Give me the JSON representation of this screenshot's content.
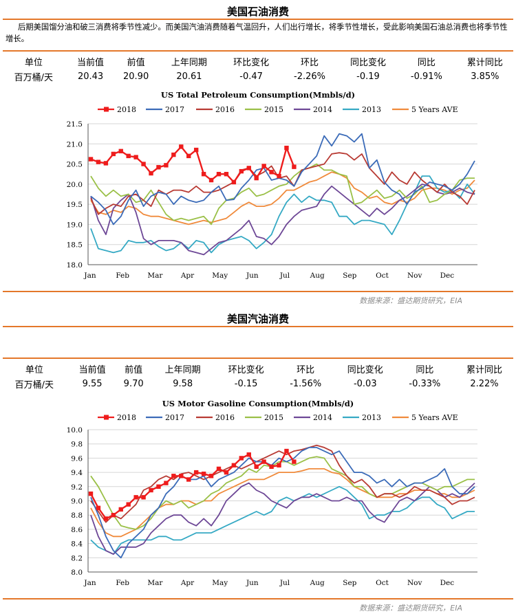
{
  "petroleum": {
    "section_title": "美国石油消费",
    "intro": "后期美国馏分油和破三消费将季节性减少。而美国汽油消费随着气温回升，人们出行增长，将季节性增长，受此影响美国石油总消费也将季节性增长。",
    "stats_headers": [
      "单位",
      "当前值",
      "前值",
      "上年同期",
      "环比变化",
      "环比",
      "同比变化",
      "同比",
      "累计同比"
    ],
    "stats_values": [
      "百万桶/天",
      "20.43",
      "20.90",
      "20.61",
      "-0.47",
      "-2.26%",
      "-0.19",
      "-0.91%",
      "3.85%"
    ],
    "source": "数据来源：盛达期货研究，EIA"
  },
  "gasoline": {
    "section_title": "美国汽油消费",
    "stats_headers": [
      "单位",
      "当前值",
      "前值",
      "上年同期",
      "环比变化",
      "环比",
      "同比变化",
      "同比",
      "累计同比"
    ],
    "stats_values": [
      "百万桶/天",
      "9.55",
      "9.70",
      "9.58",
      "-0.15",
      "-1.56%",
      "-0.03",
      "-0.33%",
      "2.22%"
    ],
    "source": "数据来源：盛达期货研究，EIA"
  },
  "colors": {
    "2018": "#ee1c1c",
    "2017": "#3b6bb8",
    "2016": "#b83a33",
    "2015": "#9ac047",
    "2014": "#6d4796",
    "2013": "#35a9c4",
    "5 Years AVE": "#f08a3b",
    "rule": "#e4772a"
  },
  "chart_data": [
    {
      "type": "line",
      "title": "US Total Petroleum Consumption(Mmbls/d)",
      "xlabel": "",
      "ylabel": "",
      "x_tick_labels": [
        "Jan",
        "Feb",
        "Mar",
        "Apr",
        "May",
        "Jun",
        "Jul",
        "Aug",
        "Sep",
        "Oct",
        "Nov",
        "Dec"
      ],
      "y_ticks": [
        18.0,
        18.5,
        19.0,
        19.5,
        20.0,
        20.5,
        21.0,
        21.5
      ],
      "ylim": [
        18.0,
        21.5
      ],
      "weeks": 52,
      "legend_position": "top",
      "grid": "horizontal",
      "series": [
        {
          "name": "2018",
          "marker": "square",
          "values": [
            20.62,
            20.55,
            20.52,
            20.75,
            20.82,
            20.7,
            20.67,
            20.5,
            20.27,
            20.42,
            20.47,
            20.73,
            20.93,
            20.7,
            20.85,
            20.25,
            20.1,
            20.25,
            20.25,
            20.05,
            20.32,
            20.4,
            20.15,
            20.45,
            20.3,
            20.2,
            20.9,
            20.43
          ]
        },
        {
          "name": "2017",
          "values": [
            19.7,
            19.55,
            19.35,
            19.0,
            19.2,
            19.6,
            19.85,
            19.45,
            19.7,
            19.8,
            19.75,
            19.5,
            19.7,
            19.6,
            19.55,
            19.6,
            19.8,
            19.95,
            19.6,
            19.62,
            19.9,
            20.1,
            20.35,
            20.4,
            20.1,
            20.15,
            20.1,
            19.95,
            20.3,
            20.5,
            20.7,
            21.2,
            20.95,
            21.25,
            21.2,
            21.05,
            21.25,
            20.4,
            20.6,
            20.05,
            19.85,
            19.75,
            19.5,
            19.8,
            19.9,
            20.05,
            20.0,
            19.95,
            19.85,
            20.0,
            20.25,
            20.58
          ]
        },
        {
          "name": "2016",
          "values": [
            19.65,
            19.25,
            19.4,
            19.5,
            19.45,
            19.7,
            19.75,
            19.6,
            19.45,
            19.85,
            19.75,
            19.85,
            19.85,
            19.8,
            19.95,
            19.8,
            19.8,
            19.85,
            19.95,
            20.05,
            20.35,
            20.4,
            20.2,
            20.3,
            20.45,
            20.15,
            20.2,
            19.95,
            20.35,
            20.4,
            20.45,
            20.5,
            20.75,
            20.78,
            20.75,
            20.6,
            20.75,
            20.4,
            20.2,
            20.0,
            20.3,
            20.1,
            20.0,
            20.3,
            20.1,
            19.95,
            19.8,
            20.0,
            19.8,
            19.7,
            19.5,
            19.85
          ]
        },
        {
          "name": "2015",
          "values": [
            20.2,
            19.9,
            19.7,
            19.85,
            19.7,
            19.75,
            19.55,
            19.6,
            19.85,
            19.55,
            19.25,
            19.1,
            19.15,
            19.1,
            19.15,
            19.2,
            19.0,
            19.4,
            19.6,
            19.65,
            19.8,
            19.9,
            19.7,
            19.75,
            19.85,
            19.95,
            20.0,
            20.2,
            20.35,
            20.4,
            20.5,
            20.35,
            20.35,
            20.25,
            20.2,
            19.5,
            19.55,
            19.7,
            19.85,
            19.65,
            19.7,
            19.85,
            19.65,
            19.75,
            19.95,
            19.55,
            19.6,
            19.75,
            19.85,
            20.1,
            20.15,
            20.15
          ]
        },
        {
          "name": "2014",
          "values": [
            19.7,
            19.1,
            18.75,
            19.4,
            19.6,
            19.75,
            19.3,
            18.65,
            18.5,
            18.6,
            18.6,
            18.6,
            18.55,
            18.35,
            18.3,
            18.25,
            18.4,
            18.55,
            18.6,
            18.75,
            18.9,
            19.1,
            18.7,
            18.65,
            18.5,
            18.7,
            19.0,
            19.2,
            19.35,
            19.4,
            19.45,
            19.75,
            19.95,
            19.8,
            19.65,
            19.5,
            19.35,
            19.2,
            19.4,
            19.25,
            19.4,
            19.6,
            19.7,
            19.85,
            20.0,
            19.95,
            19.8,
            19.75,
            19.8,
            19.9,
            19.8,
            19.75
          ]
        },
        {
          "name": "2013",
          "values": [
            18.9,
            18.4,
            18.35,
            18.3,
            18.35,
            18.6,
            18.55,
            18.55,
            18.6,
            18.45,
            18.35,
            18.4,
            18.55,
            18.4,
            18.6,
            18.55,
            18.3,
            18.5,
            18.6,
            18.65,
            18.7,
            18.6,
            18.4,
            18.55,
            18.75,
            19.2,
            19.55,
            19.75,
            19.55,
            19.7,
            19.6,
            19.6,
            19.55,
            19.2,
            19.2,
            19.0,
            19.1,
            19.1,
            19.05,
            19.0,
            18.75,
            19.1,
            19.5,
            19.8,
            20.2,
            20.2,
            19.9,
            19.8,
            19.85,
            19.65,
            20.0,
            19.75
          ]
        },
        {
          "name": "5 Years AVE",
          "values": [
            19.6,
            19.3,
            19.25,
            19.35,
            19.3,
            19.45,
            19.4,
            19.25,
            19.2,
            19.2,
            19.15,
            19.1,
            19.05,
            19.0,
            19.05,
            19.1,
            19.05,
            19.1,
            19.15,
            19.3,
            19.45,
            19.55,
            19.45,
            19.45,
            19.5,
            19.65,
            19.85,
            19.85,
            19.95,
            20.05,
            20.1,
            20.2,
            20.3,
            20.25,
            20.15,
            19.9,
            19.8,
            19.65,
            19.7,
            19.55,
            19.5,
            19.6,
            19.55,
            19.65,
            19.85,
            19.9,
            19.9,
            19.85,
            19.75,
            19.85,
            19.9,
            20.1
          ]
        }
      ]
    },
    {
      "type": "line",
      "title": "US Motor Gasoline Consumption(Mmbls/d)",
      "xlabel": "",
      "ylabel": "",
      "x_tick_labels": [
        "Jan",
        "Feb",
        "Mar",
        "Apr",
        "May",
        "Jun",
        "Jul",
        "Aug",
        "Sep",
        "Oct",
        "Nov",
        "Dec"
      ],
      "y_ticks": [
        8.0,
        8.2,
        8.4,
        8.6,
        8.8,
        9.0,
        9.2,
        9.4,
        9.6,
        9.8,
        10.0
      ],
      "ylim": [
        8.0,
        10.0
      ],
      "weeks": 52,
      "legend_position": "top",
      "grid": "horizontal",
      "series": [
        {
          "name": "2018",
          "marker": "square",
          "values": [
            9.1,
            8.9,
            8.75,
            8.8,
            8.88,
            8.95,
            9.05,
            9.05,
            9.15,
            9.2,
            9.25,
            9.35,
            9.35,
            9.3,
            9.4,
            9.38,
            9.35,
            9.45,
            9.4,
            9.5,
            9.6,
            9.65,
            9.48,
            9.55,
            9.48,
            9.5,
            9.7,
            9.55
          ]
        },
        {
          "name": "2017",
          "values": [
            9.05,
            8.8,
            8.5,
            8.3,
            8.2,
            8.4,
            8.5,
            8.6,
            8.8,
            8.9,
            9.1,
            9.2,
            9.35,
            9.3,
            9.3,
            9.35,
            9.2,
            9.3,
            9.35,
            9.4,
            9.5,
            9.6,
            9.55,
            9.55,
            9.5,
            9.6,
            9.55,
            9.6,
            9.7,
            9.75,
            9.75,
            9.7,
            9.65,
            9.7,
            9.55,
            9.4,
            9.4,
            9.35,
            9.25,
            9.3,
            9.2,
            9.3,
            9.2,
            9.25,
            9.25,
            9.3,
            9.35,
            9.45,
            9.2,
            9.1,
            9.1,
            9.2
          ]
        },
        {
          "name": "2016",
          "values": [
            9.0,
            8.85,
            8.7,
            8.8,
            8.75,
            8.85,
            8.95,
            9.15,
            9.2,
            9.3,
            9.35,
            9.3,
            9.38,
            9.4,
            9.35,
            9.3,
            9.35,
            9.4,
            9.45,
            9.5,
            9.45,
            9.5,
            9.55,
            9.6,
            9.65,
            9.7,
            9.65,
            9.7,
            9.72,
            9.75,
            9.78,
            9.75,
            9.7,
            9.5,
            9.35,
            9.25,
            9.3,
            9.2,
            9.05,
            9.1,
            9.1,
            9.05,
            9.1,
            9.2,
            9.15,
            9.15,
            9.1,
            9.05,
            8.95,
            9.0,
            9.0,
            9.05
          ]
        },
        {
          "name": "2015",
          "values": [
            9.35,
            9.2,
            9.0,
            8.8,
            8.65,
            8.62,
            8.6,
            8.65,
            8.75,
            8.9,
            9.0,
            8.95,
            9.0,
            8.9,
            8.95,
            9.0,
            9.1,
            9.15,
            9.25,
            9.3,
            9.35,
            9.45,
            9.4,
            9.5,
            9.48,
            9.55,
            9.55,
            9.5,
            9.55,
            9.6,
            9.62,
            9.6,
            9.45,
            9.4,
            9.35,
            9.2,
            9.2,
            9.1,
            9.05,
            9.1,
            9.1,
            9.15,
            9.2,
            9.25,
            9.25,
            9.2,
            9.15,
            9.2,
            9.2,
            9.25,
            9.3,
            9.3
          ]
        },
        {
          "name": "2014",
          "values": [
            8.8,
            8.5,
            8.3,
            8.25,
            8.35,
            8.35,
            8.35,
            8.4,
            8.55,
            8.65,
            8.75,
            8.8,
            8.8,
            8.7,
            8.65,
            8.75,
            8.65,
            8.8,
            9.0,
            9.1,
            9.2,
            9.25,
            9.15,
            9.1,
            9.0,
            8.95,
            8.9,
            9.0,
            9.05,
            9.05,
            9.1,
            9.05,
            9.0,
            9.0,
            9.05,
            9.0,
            9.0,
            8.85,
            8.75,
            8.7,
            8.85,
            9.0,
            9.05,
            9.0,
            9.1,
            9.2,
            9.15,
            9.05,
            9.1,
            9.05,
            9.15,
            9.25
          ]
        },
        {
          "name": "2013",
          "values": [
            8.45,
            8.35,
            8.3,
            8.25,
            8.4,
            8.45,
            8.45,
            8.45,
            8.45,
            8.5,
            8.5,
            8.45,
            8.45,
            8.5,
            8.55,
            8.55,
            8.55,
            8.6,
            8.65,
            8.7,
            8.75,
            8.8,
            8.85,
            8.8,
            8.85,
            9.0,
            9.05,
            9.0,
            9.05,
            9.1,
            9.05,
            9.1,
            9.15,
            9.2,
            9.15,
            9.05,
            8.95,
            8.75,
            8.8,
            8.8,
            8.85,
            8.85,
            8.9,
            9.0,
            9.05,
            9.05,
            8.95,
            8.9,
            8.75,
            8.8,
            8.85,
            8.85
          ]
        },
        {
          "name": "5 Years AVE",
          "values": [
            8.9,
            8.7,
            8.55,
            8.5,
            8.5,
            8.55,
            8.6,
            8.7,
            8.8,
            8.9,
            8.95,
            8.95,
            9.0,
            9.0,
            8.95,
            9.0,
            9.0,
            9.1,
            9.15,
            9.2,
            9.25,
            9.3,
            9.3,
            9.3,
            9.35,
            9.4,
            9.4,
            9.4,
            9.42,
            9.45,
            9.45,
            9.45,
            9.4,
            9.38,
            9.3,
            9.2,
            9.15,
            9.1,
            9.05,
            9.05,
            9.05,
            9.1,
            9.1,
            9.15,
            9.15,
            9.15,
            9.1,
            9.1,
            9.05,
            9.05,
            9.1,
            9.15
          ]
        }
      ]
    }
  ]
}
